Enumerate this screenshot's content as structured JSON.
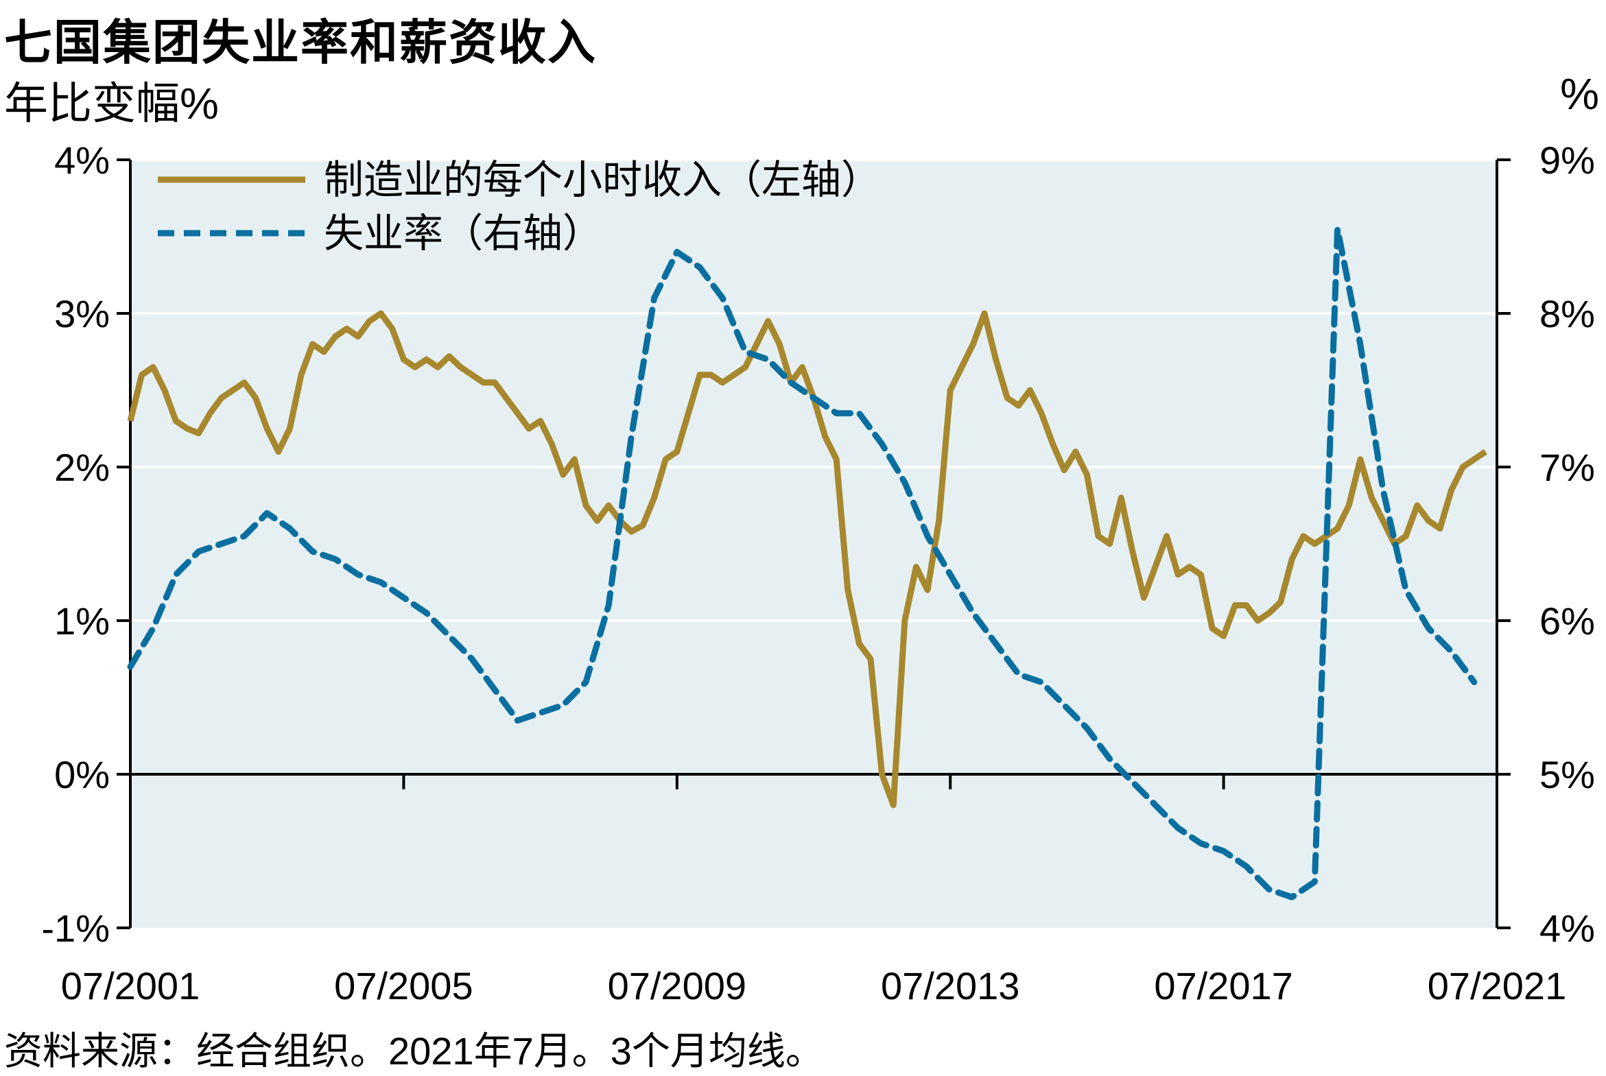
{
  "title": "七国集团失业率和薪资收入",
  "left_unit": "年比变幅%",
  "right_unit": "%",
  "source": "资料来源：经合组织。2021年7月。3个月均线。",
  "colors": {
    "plot_background": "#e6f0f2",
    "earnings_line": "#a8882e",
    "unemployment_line": "#0a6fa0",
    "gridline": "#ffffff",
    "axis": "#000000"
  },
  "chart_data": {
    "type": "line",
    "title": "七国集团失业率和薪资收入",
    "ylabel_left": "年比变幅%",
    "ylabel_right": "%",
    "xlim": [
      "2001-07",
      "2021-07"
    ],
    "ylim_left": [
      -1,
      4
    ],
    "ylim_right": [
      4,
      9
    ],
    "y_ticks_left": [
      "-1%",
      "0%",
      "1%",
      "2%",
      "3%",
      "4%"
    ],
    "y_ticks_right": [
      "4%",
      "5%",
      "6%",
      "7%",
      "8%",
      "9%"
    ],
    "x_ticks": [
      "07/2001",
      "07/2005",
      "07/2009",
      "07/2013",
      "07/2017",
      "07/2021"
    ],
    "grid": true,
    "legend_position": "top-left",
    "series": [
      {
        "name": "制造业的每个小时收入（左轴）",
        "axis": "left",
        "style": "solid",
        "points": [
          [
            "2001-07",
            2.3
          ],
          [
            "2001-09",
            2.6
          ],
          [
            "2001-11",
            2.65
          ],
          [
            "2002-01",
            2.5
          ],
          [
            "2002-03",
            2.3
          ],
          [
            "2002-05",
            2.25
          ],
          [
            "2002-07",
            2.22
          ],
          [
            "2002-09",
            2.35
          ],
          [
            "2002-11",
            2.45
          ],
          [
            "2003-01",
            2.5
          ],
          [
            "2003-03",
            2.55
          ],
          [
            "2003-05",
            2.45
          ],
          [
            "2003-07",
            2.25
          ],
          [
            "2003-09",
            2.1
          ],
          [
            "2003-11",
            2.25
          ],
          [
            "2004-01",
            2.6
          ],
          [
            "2004-03",
            2.8
          ],
          [
            "2004-05",
            2.75
          ],
          [
            "2004-07",
            2.85
          ],
          [
            "2004-09",
            2.9
          ],
          [
            "2004-11",
            2.85
          ],
          [
            "2005-01",
            2.95
          ],
          [
            "2005-03",
            3.0
          ],
          [
            "2005-05",
            2.9
          ],
          [
            "2005-07",
            2.7
          ],
          [
            "2005-09",
            2.65
          ],
          [
            "2005-11",
            2.7
          ],
          [
            "2006-01",
            2.65
          ],
          [
            "2006-03",
            2.72
          ],
          [
            "2006-05",
            2.65
          ],
          [
            "2006-07",
            2.6
          ],
          [
            "2006-09",
            2.55
          ],
          [
            "2006-11",
            2.55
          ],
          [
            "2007-01",
            2.45
          ],
          [
            "2007-03",
            2.35
          ],
          [
            "2007-05",
            2.25
          ],
          [
            "2007-07",
            2.3
          ],
          [
            "2007-09",
            2.15
          ],
          [
            "2007-11",
            1.95
          ],
          [
            "2008-01",
            2.05
          ],
          [
            "2008-03",
            1.75
          ],
          [
            "2008-05",
            1.65
          ],
          [
            "2008-07",
            1.75
          ],
          [
            "2008-09",
            1.65
          ],
          [
            "2008-11",
            1.58
          ],
          [
            "2009-01",
            1.62
          ],
          [
            "2009-03",
            1.8
          ],
          [
            "2009-05",
            2.05
          ],
          [
            "2009-07",
            2.1
          ],
          [
            "2009-09",
            2.35
          ],
          [
            "2009-11",
            2.6
          ],
          [
            "2010-01",
            2.6
          ],
          [
            "2010-03",
            2.55
          ],
          [
            "2010-05",
            2.6
          ],
          [
            "2010-07",
            2.65
          ],
          [
            "2010-09",
            2.8
          ],
          [
            "2010-11",
            2.95
          ],
          [
            "2011-01",
            2.8
          ],
          [
            "2011-03",
            2.55
          ],
          [
            "2011-05",
            2.65
          ],
          [
            "2011-07",
            2.45
          ],
          [
            "2011-09",
            2.2
          ],
          [
            "2011-11",
            2.05
          ],
          [
            "2012-01",
            1.2
          ],
          [
            "2012-03",
            0.85
          ],
          [
            "2012-05",
            0.75
          ],
          [
            "2012-07",
            0.0
          ],
          [
            "2012-09",
            -0.2
          ],
          [
            "2012-11",
            1.0
          ],
          [
            "2013-01",
            1.35
          ],
          [
            "2013-03",
            1.2
          ],
          [
            "2013-05",
            1.65
          ],
          [
            "2013-07",
            2.5
          ],
          [
            "2013-09",
            2.65
          ],
          [
            "2013-11",
            2.8
          ],
          [
            "2014-01",
            3.0
          ],
          [
            "2014-03",
            2.7
          ],
          [
            "2014-05",
            2.45
          ],
          [
            "2014-07",
            2.4
          ],
          [
            "2014-09",
            2.5
          ],
          [
            "2014-11",
            2.35
          ],
          [
            "2015-01",
            2.15
          ],
          [
            "2015-03",
            1.98
          ],
          [
            "2015-05",
            2.1
          ],
          [
            "2015-07",
            1.95
          ],
          [
            "2015-09",
            1.55
          ],
          [
            "2015-11",
            1.5
          ],
          [
            "2016-01",
            1.8
          ],
          [
            "2016-03",
            1.45
          ],
          [
            "2016-05",
            1.15
          ],
          [
            "2016-07",
            1.35
          ],
          [
            "2016-09",
            1.55
          ],
          [
            "2016-11",
            1.3
          ],
          [
            "2017-01",
            1.35
          ],
          [
            "2017-03",
            1.3
          ],
          [
            "2017-05",
            0.95
          ],
          [
            "2017-07",
            0.9
          ],
          [
            "2017-09",
            1.1
          ],
          [
            "2017-11",
            1.1
          ],
          [
            "2018-01",
            1.0
          ],
          [
            "2018-03",
            1.05
          ],
          [
            "2018-05",
            1.12
          ],
          [
            "2018-07",
            1.4
          ],
          [
            "2018-09",
            1.55
          ],
          [
            "2018-11",
            1.5
          ],
          [
            "2019-01",
            1.55
          ],
          [
            "2019-03",
            1.6
          ],
          [
            "2019-05",
            1.75
          ],
          [
            "2019-07",
            2.05
          ],
          [
            "2019-09",
            1.8
          ],
          [
            "2019-11",
            1.65
          ],
          [
            "2020-01",
            1.5
          ],
          [
            "2020-03",
            1.55
          ],
          [
            "2020-05",
            1.75
          ],
          [
            "2020-07",
            1.65
          ],
          [
            "2020-09",
            1.6
          ],
          [
            "2020-11",
            1.85
          ],
          [
            "2021-01",
            2.0
          ],
          [
            "2021-03",
            2.05
          ],
          [
            "2021-05",
            2.1
          ]
        ]
      },
      {
        "name": "失业率（右轴）",
        "axis": "right",
        "style": "dashed",
        "points": [
          [
            "2001-07",
            5.7
          ],
          [
            "2001-11",
            5.95
          ],
          [
            "2002-03",
            6.3
          ],
          [
            "2002-07",
            6.45
          ],
          [
            "2002-11",
            6.5
          ],
          [
            "2003-03",
            6.55
          ],
          [
            "2003-07",
            6.7
          ],
          [
            "2003-11",
            6.6
          ],
          [
            "2004-03",
            6.45
          ],
          [
            "2004-07",
            6.4
          ],
          [
            "2004-11",
            6.3
          ],
          [
            "2005-03",
            6.25
          ],
          [
            "2005-07",
            6.15
          ],
          [
            "2005-11",
            6.05
          ],
          [
            "2006-03",
            5.9
          ],
          [
            "2006-07",
            5.75
          ],
          [
            "2006-11",
            5.55
          ],
          [
            "2007-03",
            5.35
          ],
          [
            "2007-07",
            5.4
          ],
          [
            "2007-11",
            5.45
          ],
          [
            "2008-03",
            5.6
          ],
          [
            "2008-07",
            6.1
          ],
          [
            "2008-11",
            7.2
          ],
          [
            "2009-03",
            8.1
          ],
          [
            "2009-07",
            8.4
          ],
          [
            "2009-11",
            8.3
          ],
          [
            "2010-03",
            8.1
          ],
          [
            "2010-07",
            7.75
          ],
          [
            "2010-11",
            7.7
          ],
          [
            "2011-03",
            7.55
          ],
          [
            "2011-07",
            7.45
          ],
          [
            "2011-11",
            7.35
          ],
          [
            "2012-03",
            7.35
          ],
          [
            "2012-07",
            7.15
          ],
          [
            "2012-11",
            6.9
          ],
          [
            "2013-03",
            6.55
          ],
          [
            "2013-07",
            6.3
          ],
          [
            "2013-11",
            6.05
          ],
          [
            "2014-03",
            5.85
          ],
          [
            "2014-07",
            5.65
          ],
          [
            "2014-11",
            5.6
          ],
          [
            "2015-03",
            5.45
          ],
          [
            "2015-07",
            5.3
          ],
          [
            "2015-11",
            5.1
          ],
          [
            "2016-03",
            4.95
          ],
          [
            "2016-07",
            4.8
          ],
          [
            "2016-11",
            4.65
          ],
          [
            "2017-03",
            4.55
          ],
          [
            "2017-07",
            4.5
          ],
          [
            "2017-11",
            4.4
          ],
          [
            "2018-03",
            4.25
          ],
          [
            "2018-07",
            4.2
          ],
          [
            "2018-11",
            4.3
          ],
          [
            "2019-03",
            8.55
          ],
          [
            "2019-07",
            7.8
          ],
          [
            "2019-11",
            6.85
          ],
          [
            "2020-03",
            6.2
          ],
          [
            "2020-07",
            5.95
          ],
          [
            "2020-11",
            5.8
          ],
          [
            "2021-03",
            5.6
          ]
        ]
      }
    ]
  }
}
